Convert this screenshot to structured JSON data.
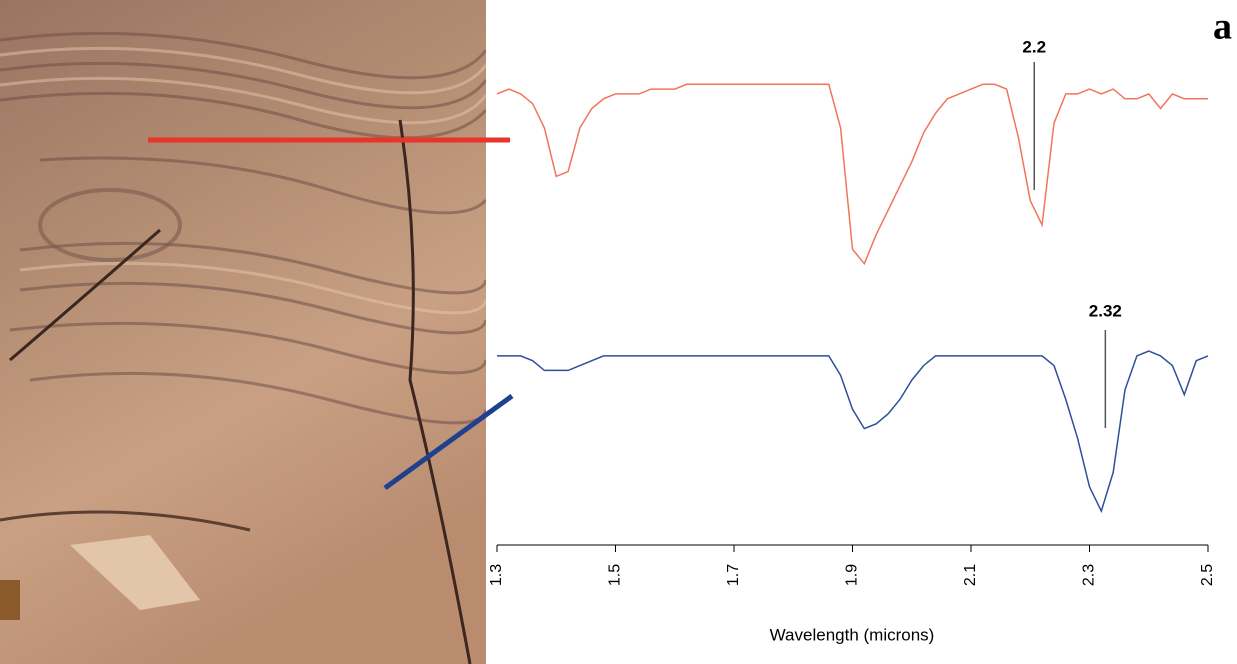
{
  "chart_data": {
    "type": "line",
    "panel_label": "a",
    "x_label": "Wavelength (microns)",
    "xlim": [
      1.3,
      2.5
    ],
    "xticks": [
      1.3,
      1.5,
      1.7,
      1.9,
      2.1,
      2.3,
      2.5
    ],
    "ylim": [
      0,
      1
    ],
    "x": [
      1.3,
      1.32,
      1.34,
      1.36,
      1.38,
      1.4,
      1.42,
      1.44,
      1.46,
      1.48,
      1.5,
      1.52,
      1.54,
      1.56,
      1.58,
      1.6,
      1.62,
      1.64,
      1.66,
      1.68,
      1.7,
      1.72,
      1.74,
      1.76,
      1.78,
      1.8,
      1.82,
      1.84,
      1.86,
      1.88,
      1.9,
      1.92,
      1.94,
      1.96,
      1.98,
      2.0,
      2.02,
      2.04,
      2.06,
      2.08,
      2.1,
      2.12,
      2.14,
      2.16,
      2.18,
      2.2,
      2.22,
      2.24,
      2.26,
      2.28,
      2.3,
      2.32,
      2.34,
      2.36,
      2.38,
      2.4,
      2.42,
      2.44,
      2.46,
      2.48,
      2.5
    ],
    "series": [
      {
        "color": "#f0765a",
        "values": [
          0.93,
          0.94,
          0.93,
          0.91,
          0.86,
          0.76,
          0.77,
          0.86,
          0.9,
          0.92,
          0.93,
          0.93,
          0.93,
          0.94,
          0.94,
          0.94,
          0.95,
          0.95,
          0.95,
          0.95,
          0.95,
          0.95,
          0.95,
          0.95,
          0.95,
          0.95,
          0.95,
          0.95,
          0.95,
          0.86,
          0.61,
          0.58,
          0.64,
          0.69,
          0.74,
          0.79,
          0.85,
          0.89,
          0.92,
          0.93,
          0.94,
          0.95,
          0.95,
          0.94,
          0.84,
          0.71,
          0.66,
          0.87,
          0.93,
          0.93,
          0.94,
          0.93,
          0.94,
          0.92,
          0.92,
          0.93,
          0.9,
          0.93,
          0.92,
          0.92,
          0.92
        ]
      },
      {
        "color": "#2e4f9a",
        "values": [
          0.39,
          0.39,
          0.39,
          0.38,
          0.36,
          0.36,
          0.36,
          0.37,
          0.38,
          0.39,
          0.39,
          0.39,
          0.39,
          0.39,
          0.39,
          0.39,
          0.39,
          0.39,
          0.39,
          0.39,
          0.39,
          0.39,
          0.39,
          0.39,
          0.39,
          0.39,
          0.39,
          0.39,
          0.39,
          0.35,
          0.28,
          0.24,
          0.25,
          0.27,
          0.3,
          0.34,
          0.37,
          0.39,
          0.39,
          0.39,
          0.39,
          0.39,
          0.39,
          0.39,
          0.39,
          0.39,
          0.39,
          0.37,
          0.3,
          0.22,
          0.12,
          0.07,
          0.15,
          0.32,
          0.39,
          0.4,
          0.39,
          0.37,
          0.31,
          0.38,
          0.39
        ]
      }
    ],
    "annotations": [
      {
        "label": "2.2",
        "x": 2.2
      },
      {
        "label": "2.32",
        "x": 2.32
      }
    ]
  }
}
